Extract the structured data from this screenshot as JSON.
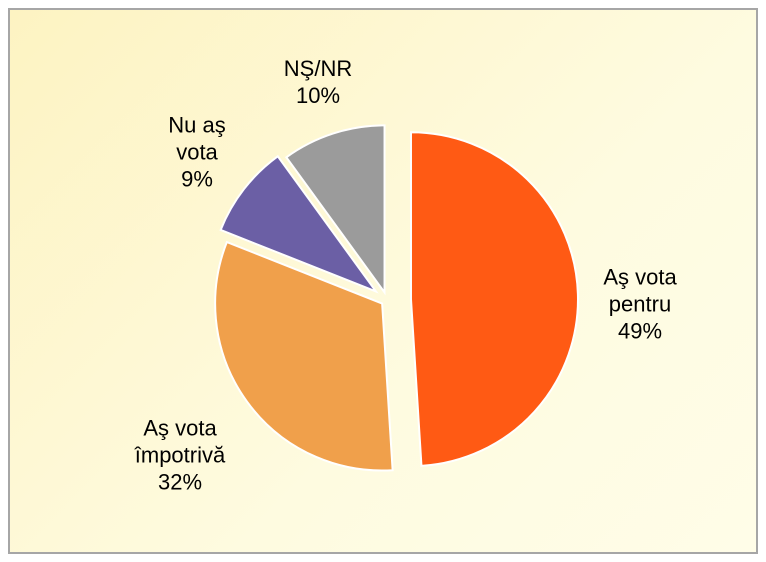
{
  "chart_data": {
    "type": "pie",
    "categories": [
      "Aş vota pentru",
      "Aş vota împotrivă",
      "Nu aş vota",
      "NŞ/NR"
    ],
    "values": [
      49,
      32,
      9,
      10
    ],
    "value_labels": [
      "49%",
      "32%",
      "9%",
      "10%"
    ],
    "colors": [
      "#ff5a14",
      "#f0a04b",
      "#6b5fa5",
      "#9b9b9b"
    ]
  }
}
